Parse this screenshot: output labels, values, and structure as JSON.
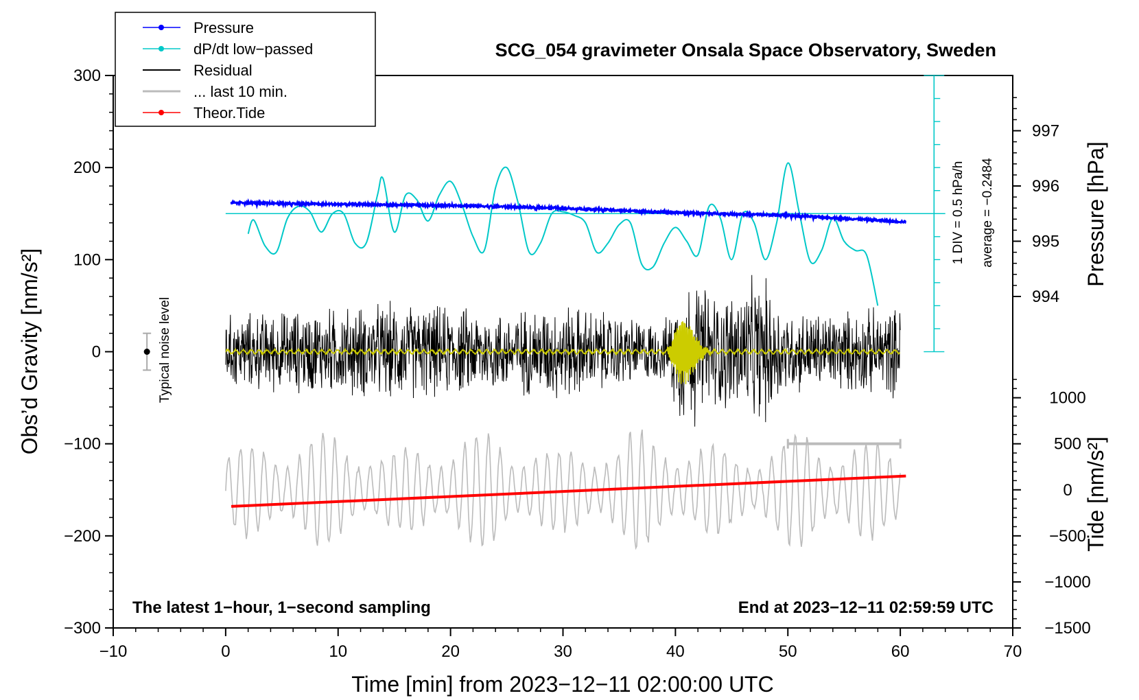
{
  "chart_data": {
    "type": "line",
    "title": "SCG_054 gravimeter Onsala Space Observatory, Sweden",
    "xlabel": "Time [min] from 2023−12−11 02:00:00 UTC",
    "ylabel_left": "Obs’d Gravity [nm/s²]",
    "ylabel_pressure": "Pressure [hPa]",
    "ylabel_tide": "Tide [nm/s²]",
    "xlim": [
      -10,
      70
    ],
    "ylim_left": [
      -300,
      300
    ],
    "x_ticks": [
      -10,
      0,
      10,
      20,
      30,
      40,
      50,
      60,
      70
    ],
    "x_tick_labels": [
      "−10",
      "0",
      "10",
      "20",
      "30",
      "40",
      "50",
      "60",
      "70"
    ],
    "y_left_ticks": [
      -300,
      -200,
      -100,
      0,
      100,
      200,
      300
    ],
    "y_left_tick_labels": [
      "−300",
      "−200",
      "−100",
      "0",
      "100",
      "200",
      "300"
    ],
    "pressure_axis": {
      "ticks": [
        994,
        995,
        996,
        997
      ],
      "tick_labels": [
        "994",
        "995",
        "996",
        "997"
      ],
      "map": {
        "value_a": 994,
        "grav_a": 60,
        "value_b": 997,
        "grav_b": 240
      }
    },
    "tide_axis": {
      "ticks": [
        -1500,
        -1000,
        -500,
        0,
        500,
        1000
      ],
      "tick_labels": [
        "−1500",
        "−1000",
        "−500",
        "0",
        "500",
        "1000"
      ],
      "map": {
        "value_a": -1500,
        "grav_a": -300,
        "value_b": 1000,
        "grav_b": -50
      }
    },
    "dpdt_scale": {
      "zero_grav": 0,
      "top_grav": 300,
      "baseline_grav": 150,
      "div_count": 12,
      "div_label": "1 DIV = 0.5 hPa/h",
      "average_label": "average = −0.2484",
      "x_minutes": 63
    },
    "series": [
      {
        "name": "Pressure",
        "color": "#0000ff",
        "axis": "pressure",
        "x": [
          0.5,
          10,
          20,
          30,
          40,
          50,
          60.5
        ],
        "values": [
          995.7,
          995.67,
          995.65,
          995.6,
          995.52,
          995.47,
          995.35
        ]
      },
      {
        "name": "dP/dt low−passed",
        "color": "#00c8c8",
        "axis": "left",
        "x": [
          2,
          2.5,
          3.5,
          4.5,
          5.5,
          6.5,
          7.5,
          8.5,
          9.5,
          10.5,
          11.5,
          12.5,
          13.5,
          14,
          15,
          16,
          17,
          18,
          19,
          20,
          21,
          22,
          23,
          24,
          25,
          26,
          27,
          28,
          29,
          30,
          31,
          32,
          33,
          34,
          35,
          36,
          37,
          38,
          39,
          40,
          41,
          42,
          43,
          44,
          45,
          46,
          47,
          48,
          49,
          50,
          51,
          52,
          53,
          54,
          55,
          56,
          57,
          58
        ],
        "values": [
          128,
          143,
          115,
          108,
          145,
          158,
          152,
          130,
          150,
          150,
          118,
          118,
          170,
          188,
          130,
          170,
          165,
          142,
          170,
          185,
          160,
          125,
          110,
          178,
          200,
          162,
          108,
          118,
          150,
          152,
          148,
          140,
          108,
          118,
          138,
          140,
          95,
          92,
          118,
          135,
          120,
          105,
          158,
          145,
          100,
          150,
          140,
          100,
          140,
          205,
          152,
          98,
          110,
          145,
          120,
          110,
          105,
          50
        ]
      },
      {
        "name": "Residual",
        "color": "#000000",
        "axis": "left",
        "envelope_x": [
          0,
          5,
          10,
          15,
          20,
          25,
          30,
          35,
          39,
          40.5,
          42,
          44,
          46,
          48,
          50,
          55,
          60
        ],
        "envelope_amp": [
          45,
          50,
          55,
          60,
          55,
          50,
          60,
          45,
          35,
          90,
          90,
          70,
          85,
          90,
          50,
          50,
          55
        ]
      },
      {
        "name": "... last 10 min.",
        "color": "#bbbbbb",
        "axis": "left",
        "x_range": [
          50,
          60
        ],
        "grav_level": -100
      },
      {
        "name": "Theor.Tide",
        "color": "#ff0000",
        "axis": "tide",
        "x": [
          0.5,
          60.5
        ],
        "values": [
          -180,
          150
        ]
      },
      {
        "name": "Filtered residual",
        "color": "#cccc00",
        "axis": "left",
        "spike_x": 40.6,
        "spike_amp": 35
      }
    ],
    "noise_level": {
      "label": "Typical noise level",
      "x": -7,
      "center": 0,
      "amp": 20
    },
    "annotations": {
      "bottom_left": "The latest 1−hour, 1−second sampling",
      "bottom_right": "End at 2023−12−11 02:59:59 UTC"
    },
    "legend": {
      "placement": "top-left",
      "entries": [
        "Pressure",
        "dP/dt low−passed",
        "Residual",
        "... last 10 min.",
        "Theor.Tide"
      ]
    }
  }
}
